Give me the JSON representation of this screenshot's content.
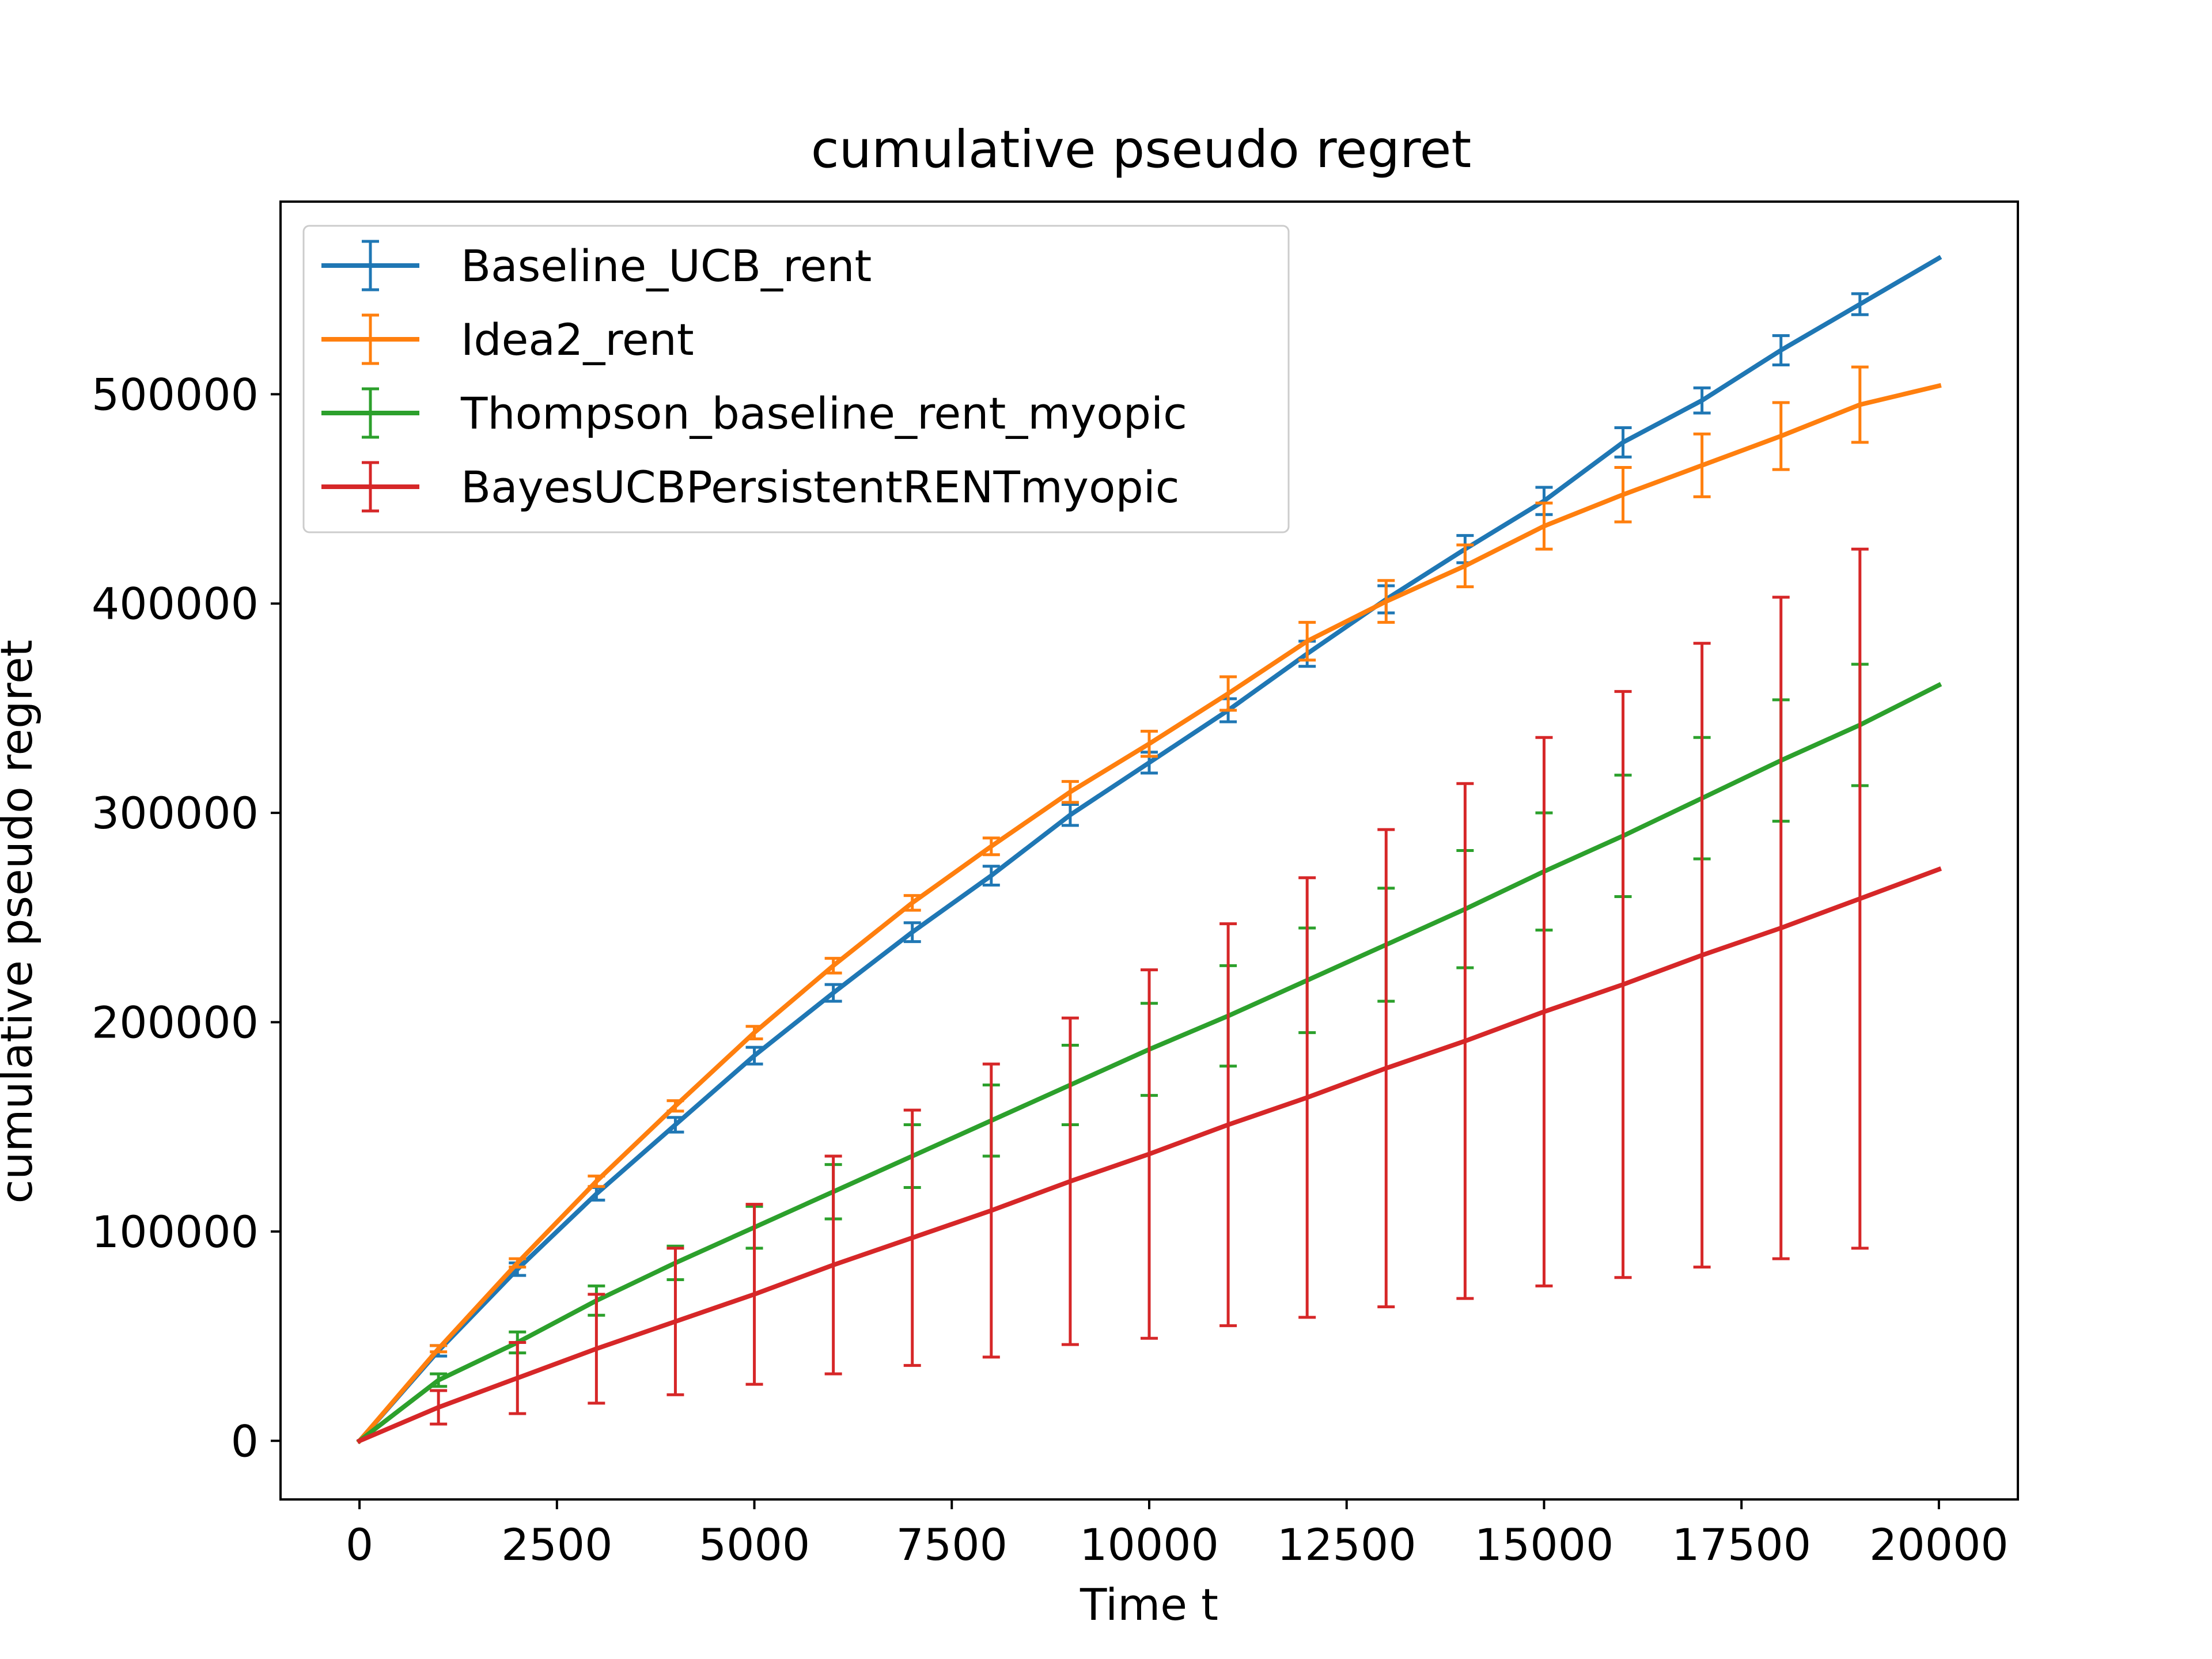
{
  "chart_data": {
    "type": "line",
    "title": "cumulative pseudo regret",
    "xlabel": "Time t",
    "ylabel": "cumulative pseudo regret",
    "xlim": [
      -1000,
      21000
    ],
    "ylim": [
      -28000,
      592000
    ],
    "xticks": [
      0,
      2500,
      5000,
      7500,
      10000,
      12500,
      15000,
      17500,
      20000
    ],
    "xtick_labels": [
      "0",
      "2500",
      "5000",
      "7500",
      "10000",
      "12500",
      "15000",
      "17500",
      "20000"
    ],
    "yticks": [
      0,
      100000,
      200000,
      300000,
      400000,
      500000
    ],
    "ytick_labels": [
      "0",
      "100000",
      "200000",
      "300000",
      "400000",
      "500000"
    ],
    "grid": false,
    "legend_position": "upper-left",
    "series": [
      {
        "name": "Baseline_UCB_rent",
        "color": "#1f77b4",
        "x": [
          0,
          1000,
          2000,
          3000,
          4000,
          5000,
          6000,
          7000,
          8000,
          9000,
          10000,
          11000,
          12000,
          13000,
          14000,
          15000,
          16000,
          17000,
          18000,
          19000,
          20000
        ],
        "y": [
          0,
          43000,
          82000,
          118000,
          151000,
          184000,
          214000,
          243000,
          270000,
          299000,
          324000,
          349000,
          376000,
          402000,
          426000,
          449000,
          477000,
          497000,
          521000,
          543000,
          565000
        ],
        "err": [
          0,
          2500,
          3000,
          3000,
          3500,
          4000,
          4000,
          4500,
          4500,
          5000,
          5000,
          5500,
          6000,
          6500,
          6500,
          6500,
          7000,
          6000,
          7000,
          5000,
          0
        ]
      },
      {
        "name": "Idea2_rent",
        "color": "#ff7f0e",
        "x": [
          0,
          1000,
          2000,
          3000,
          4000,
          5000,
          6000,
          7000,
          8000,
          9000,
          10000,
          11000,
          12000,
          13000,
          14000,
          15000,
          16000,
          17000,
          18000,
          19000,
          20000
        ],
        "y": [
          0,
          44000,
          85000,
          124000,
          160000,
          195000,
          227000,
          257000,
          284000,
          310000,
          333000,
          357000,
          382000,
          401000,
          418000,
          437000,
          452000,
          466000,
          480000,
          495000,
          504000
        ],
        "err": [
          0,
          1500,
          2000,
          2500,
          2500,
          3000,
          3500,
          3500,
          4000,
          5000,
          6000,
          8000,
          9000,
          10000,
          10000,
          11000,
          13000,
          15000,
          16000,
          18000,
          0
        ]
      },
      {
        "name": "Thompson_baseline_rent_myopic",
        "color": "#2ca02c",
        "x": [
          0,
          1000,
          2000,
          3000,
          4000,
          5000,
          6000,
          7000,
          8000,
          9000,
          10000,
          11000,
          12000,
          13000,
          14000,
          15000,
          16000,
          17000,
          18000,
          19000,
          20000
        ],
        "y": [
          0,
          29000,
          47000,
          67000,
          85000,
          102000,
          119000,
          136000,
          153000,
          170000,
          187000,
          203000,
          220000,
          237000,
          254000,
          272000,
          289000,
          307000,
          325000,
          342000,
          361000
        ],
        "err": [
          0,
          3000,
          5000,
          7000,
          8000,
          10000,
          13000,
          15000,
          17000,
          19000,
          22000,
          24000,
          25000,
          27000,
          28000,
          28000,
          29000,
          29000,
          29000,
          29000,
          0
        ]
      },
      {
        "name": "BayesUCBPersistentRENTmyopic",
        "color": "#d62728",
        "x": [
          0,
          1000,
          2000,
          3000,
          4000,
          5000,
          6000,
          7000,
          8000,
          9000,
          10000,
          11000,
          12000,
          13000,
          14000,
          15000,
          16000,
          17000,
          18000,
          19000,
          20000
        ],
        "y": [
          0,
          16000,
          30000,
          44000,
          57000,
          70000,
          84000,
          97000,
          110000,
          124000,
          137000,
          151000,
          164000,
          178000,
          191000,
          205000,
          218000,
          232000,
          245000,
          259000,
          273000
        ],
        "err": [
          0,
          8000,
          17000,
          26000,
          35000,
          43000,
          52000,
          61000,
          70000,
          78000,
          88000,
          96000,
          105000,
          114000,
          123000,
          131000,
          140000,
          149000,
          158000,
          167000,
          0
        ]
      }
    ]
  }
}
